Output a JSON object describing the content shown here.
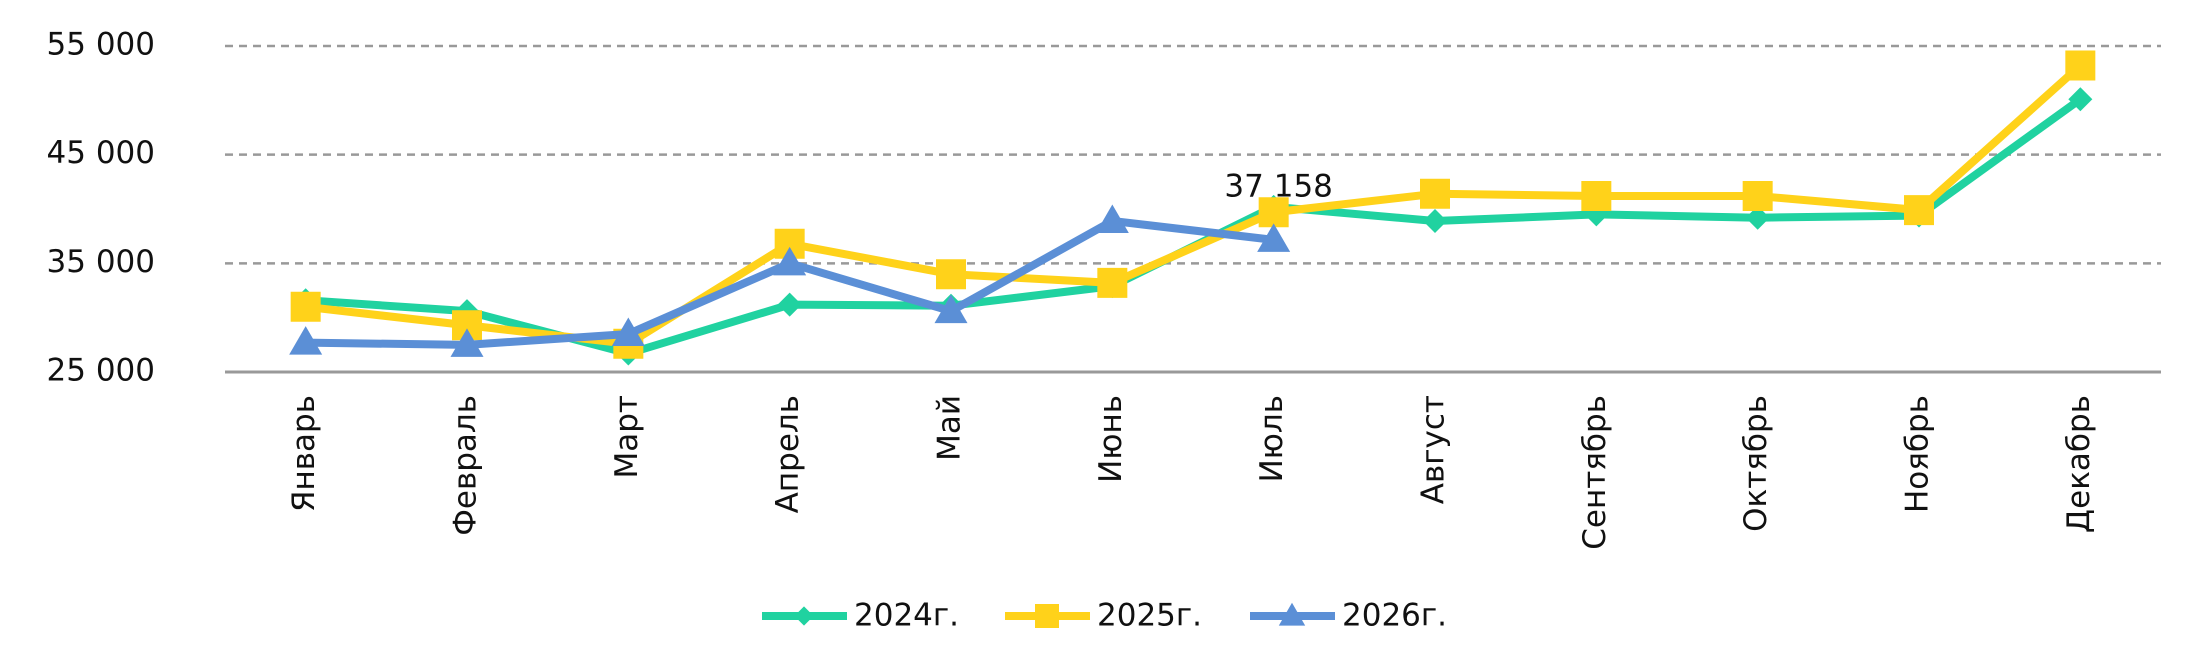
{
  "chart_data": {
    "type": "line",
    "categories": [
      "Январь",
      "Февраль",
      "Март",
      "Апрель",
      "Май",
      "Июнь",
      "Июль",
      "Август",
      "Сентябрь",
      "Октябрь",
      "Ноябрь",
      "Декабрь"
    ],
    "series": [
      {
        "name": "2024г.",
        "color": "#20d2a0",
        "marker": "diamond",
        "values": [
          31600,
          30600,
          26700,
          31200,
          31100,
          32900,
          40200,
          38900,
          39500,
          39200,
          39400,
          50100
        ]
      },
      {
        "name": "2025г.",
        "color": "#ffd21a",
        "marker": "square",
        "values": [
          31000,
          29300,
          27600,
          36800,
          34000,
          33200,
          39700,
          41400,
          41200,
          41200,
          39900,
          53200
        ]
      },
      {
        "name": "2026г.",
        "color": "#5b8fd6",
        "marker": "triangle",
        "values": [
          27700,
          27500,
          28500,
          35000,
          30600,
          38900,
          37158,
          null,
          null,
          null,
          null,
          null
        ],
        "value_labels": [
          null,
          null,
          null,
          null,
          null,
          null,
          "37 158",
          null,
          null,
          null,
          null,
          null
        ]
      }
    ],
    "ylim": [
      25000,
      55000
    ],
    "yticks": [
      {
        "value": 25000,
        "label": "25 000"
      },
      {
        "value": 35000,
        "label": "35 000"
      },
      {
        "value": 45000,
        "label": "45 000"
      },
      {
        "value": 55000,
        "label": "55 000"
      }
    ],
    "grid": true,
    "legend": "bottom"
  }
}
